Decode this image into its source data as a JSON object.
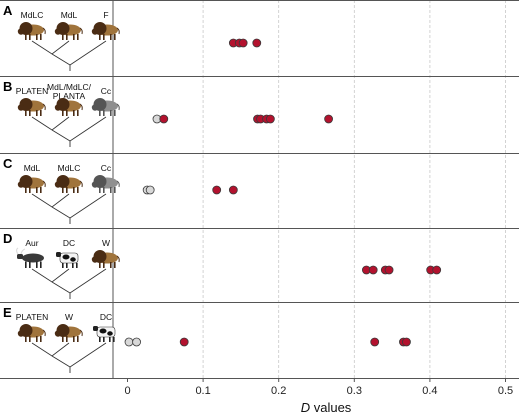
{
  "chart_data": {
    "type": "scatter",
    "xlabel": {
      "symbol": "D",
      "text": "values"
    },
    "xlim": [
      -0.02,
      0.51
    ],
    "x_ticks": [
      "0",
      "0.1",
      "0.2",
      "0.3",
      "0.4",
      "0.5"
    ],
    "x_tick_values": [
      0,
      0.1,
      0.2,
      0.3,
      0.4,
      0.5
    ],
    "grid": "vertical dashed at each tick",
    "colors": {
      "significant": "#b3122e",
      "non_significant": "#d8d8d8",
      "outline": "#3a3a3a"
    },
    "panels": [
      {
        "letter": "A",
        "taxa": [
          "MdLC",
          "MdL",
          "F"
        ],
        "icons": [
          "bison-icon",
          "bison-icon",
          "bison-icon"
        ],
        "points": [
          {
            "x": 0.14,
            "significant": true
          },
          {
            "x": 0.148,
            "significant": true
          },
          {
            "x": 0.153,
            "significant": true
          },
          {
            "x": 0.171,
            "significant": true
          }
        ]
      },
      {
        "letter": "B",
        "taxa": [
          "PLATEN",
          "MdL/MdLC/\nPLANTA",
          "Cc"
        ],
        "icons": [
          "bison-icon",
          "bison-icon",
          "gray-bison-icon"
        ],
        "points": [
          {
            "x": 0.039,
            "significant": false
          },
          {
            "x": 0.048,
            "significant": true
          },
          {
            "x": 0.172,
            "significant": true
          },
          {
            "x": 0.176,
            "significant": true
          },
          {
            "x": 0.184,
            "significant": true
          },
          {
            "x": 0.189,
            "significant": true
          },
          {
            "x": 0.266,
            "significant": true
          }
        ]
      },
      {
        "letter": "C",
        "taxa": [
          "MdL",
          "MdLC",
          "Cc"
        ],
        "icons": [
          "bison-icon",
          "bison-icon",
          "gray-bison-icon"
        ],
        "points": [
          {
            "x": 0.026,
            "significant": false
          },
          {
            "x": 0.03,
            "significant": false
          },
          {
            "x": 0.118,
            "significant": true
          },
          {
            "x": 0.14,
            "significant": true
          }
        ]
      },
      {
        "letter": "D",
        "taxa": [
          "Aur",
          "DC",
          "W"
        ],
        "icons": [
          "aurochs-icon",
          "cow-icon",
          "bison-icon"
        ],
        "points": [
          {
            "x": 0.316,
            "significant": true
          },
          {
            "x": 0.325,
            "significant": true
          },
          {
            "x": 0.341,
            "significant": true
          },
          {
            "x": 0.346,
            "significant": true
          },
          {
            "x": 0.401,
            "significant": true
          },
          {
            "x": 0.409,
            "significant": true
          }
        ]
      },
      {
        "letter": "E",
        "taxa": [
          "PLATEN",
          "W",
          "DC"
        ],
        "icons": [
          "bison-icon",
          "bison-icon",
          "cow-icon"
        ],
        "points": [
          {
            "x": 0.002,
            "significant": false
          },
          {
            "x": 0.012,
            "significant": false
          },
          {
            "x": 0.075,
            "significant": true
          },
          {
            "x": 0.327,
            "significant": true
          },
          {
            "x": 0.365,
            "significant": true
          },
          {
            "x": 0.369,
            "significant": true
          }
        ]
      }
    ]
  }
}
